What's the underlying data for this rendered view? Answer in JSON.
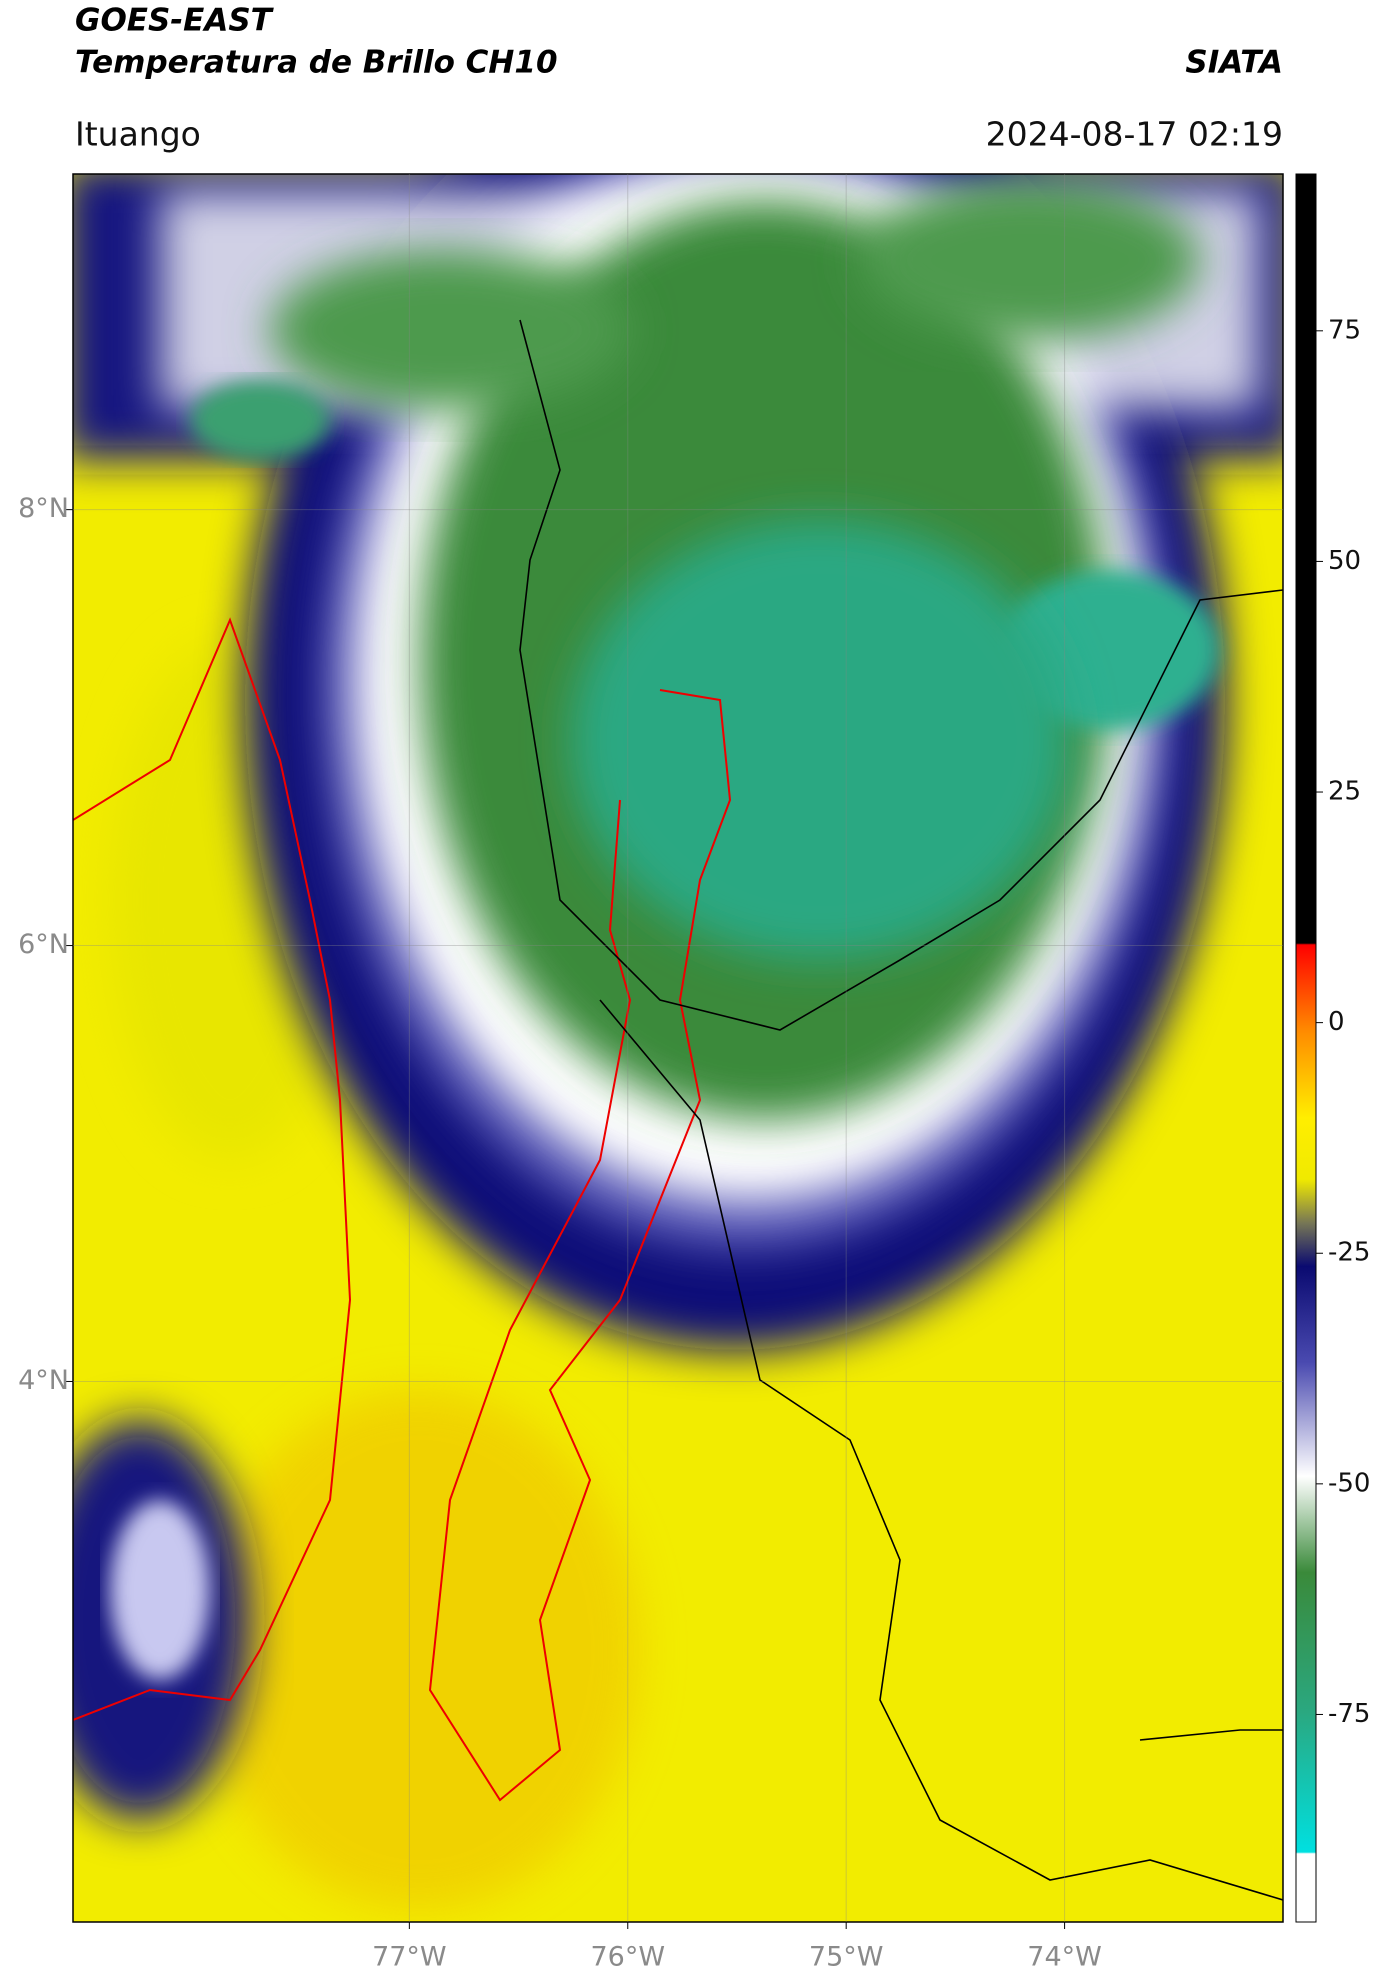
{
  "header": {
    "title": "GOES-EAST",
    "subtitle": "Temperatura de Brillo CH10",
    "source": "SIATA",
    "location": "Ituango",
    "datetime": "2024-08-17 02:19"
  },
  "map": {
    "lon_range": [
      -78.54,
      -73.0
    ],
    "lat_range": [
      1.52,
      9.54
    ],
    "lon_ticks": [
      {
        "value": -77,
        "label": "77°W"
      },
      {
        "value": -76,
        "label": "76°W"
      },
      {
        "value": -75,
        "label": "75°W"
      },
      {
        "value": -74,
        "label": "74°W"
      }
    ],
    "lat_ticks": [
      {
        "value": 8,
        "label": "8°N"
      },
      {
        "value": 6,
        "label": "6°N"
      },
      {
        "value": 4,
        "label": "4°N"
      }
    ]
  },
  "colorbar": {
    "range": [
      -97.5,
      92
    ],
    "ticks": [
      75,
      50,
      25,
      0,
      -25,
      -50,
      -75
    ]
  }
}
